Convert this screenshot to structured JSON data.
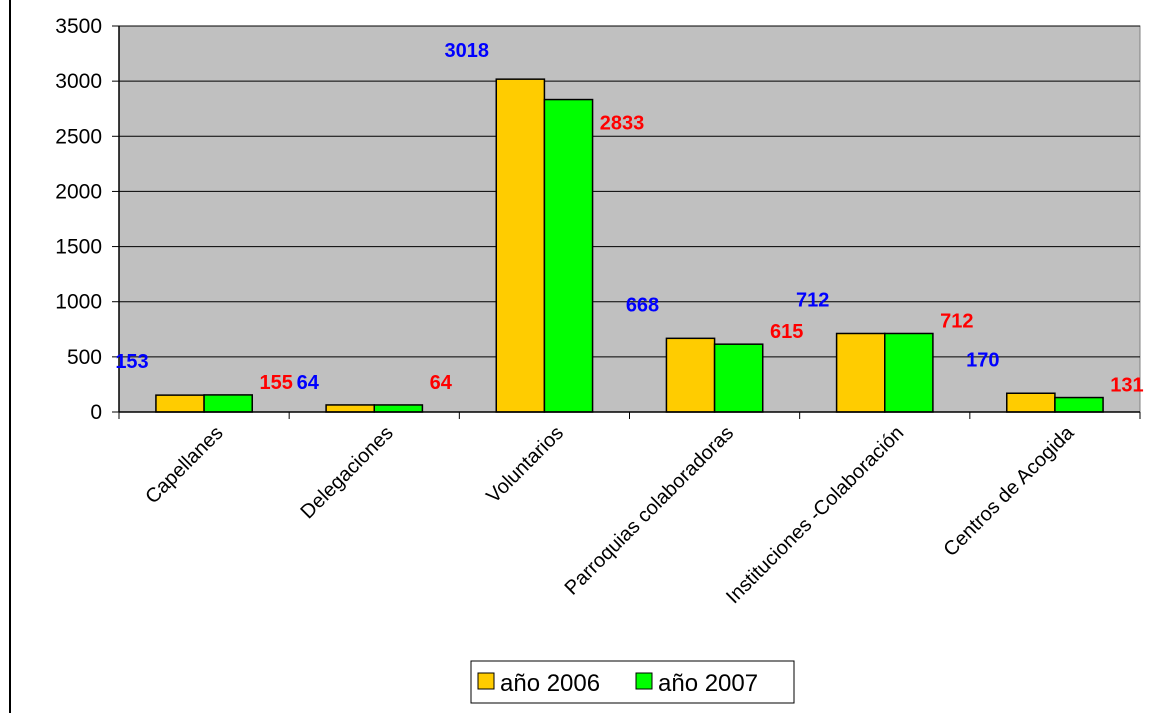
{
  "chart_data": {
    "type": "bar",
    "categories": [
      "Capellanes",
      "Delegaciones",
      "Voluntarios",
      "Parroquias colaboradoras",
      "Instituciones -Colaboración",
      "Centros de Acogida"
    ],
    "series": [
      {
        "name": "año 2006",
        "values": [
          153,
          64,
          3018,
          668,
          712,
          170
        ],
        "color": "#FFCC00",
        "label_color": "#0000FF"
      },
      {
        "name": "año 2007",
        "values": [
          155,
          64,
          2833,
          615,
          712,
          131
        ],
        "color": "#00FF00",
        "label_color": "#FF0000"
      }
    ],
    "yticks": [
      "0",
      "500",
      "1000",
      "1500",
      "2000",
      "2500",
      "3000",
      "3500"
    ],
    "ylim": [
      0,
      3500
    ],
    "title": "",
    "xlabel": "",
    "ylabel": "",
    "grid": true,
    "legend_position": "bottom-center",
    "plot_background": "#C0C0C0"
  }
}
